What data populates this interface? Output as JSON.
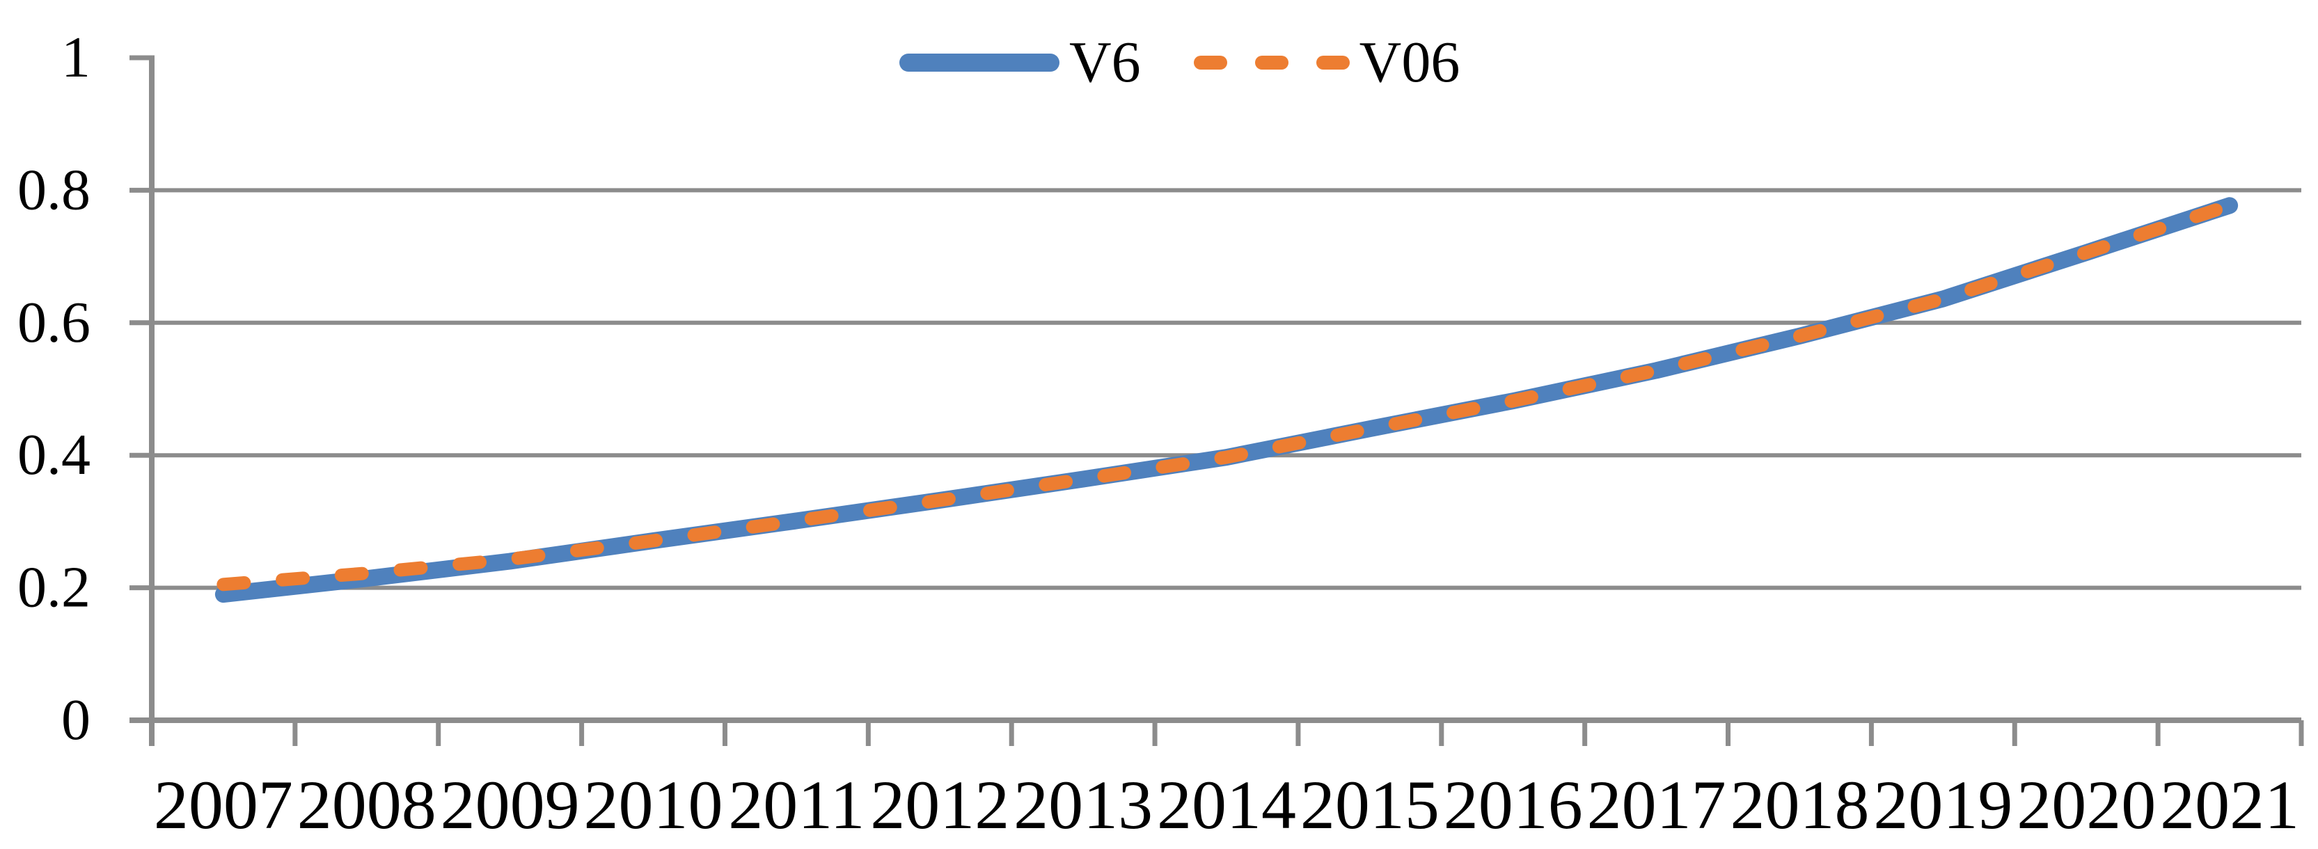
{
  "chart_data": {
    "type": "line",
    "title": "",
    "categories": [
      "2007",
      "2008",
      "2009",
      "2010",
      "2011",
      "2012",
      "2013",
      "2014",
      "2015",
      "2016",
      "2017",
      "2018",
      "2019",
      "2020",
      "2021"
    ],
    "series": [
      {
        "name": "V6",
        "color": "#4F81BD",
        "line_style": "solid",
        "values": [
          0.19,
          0.214,
          0.24,
          0.271,
          0.301,
          0.332,
          0.364,
          0.397,
          0.44,
          0.482,
          0.528,
          0.58,
          0.636,
          0.706,
          0.777
        ]
      },
      {
        "name": "V06",
        "color": "#ED7D31",
        "line_style": "dashed",
        "values": [
          0.205,
          0.222,
          0.243,
          0.271,
          0.301,
          0.332,
          0.364,
          0.397,
          0.44,
          0.482,
          0.528,
          0.58,
          0.636,
          0.706,
          0.777
        ]
      }
    ],
    "xlabel": "",
    "ylabel": "",
    "ylim": [
      0,
      1
    ],
    "yticks": [
      "0",
      "0.2",
      "0.4",
      "0.6",
      "0.8",
      "1"
    ],
    "grid": "horizontal-only",
    "legend_position": "top-center",
    "axis_color": "#8C8C8C",
    "text_color": "#000000"
  }
}
